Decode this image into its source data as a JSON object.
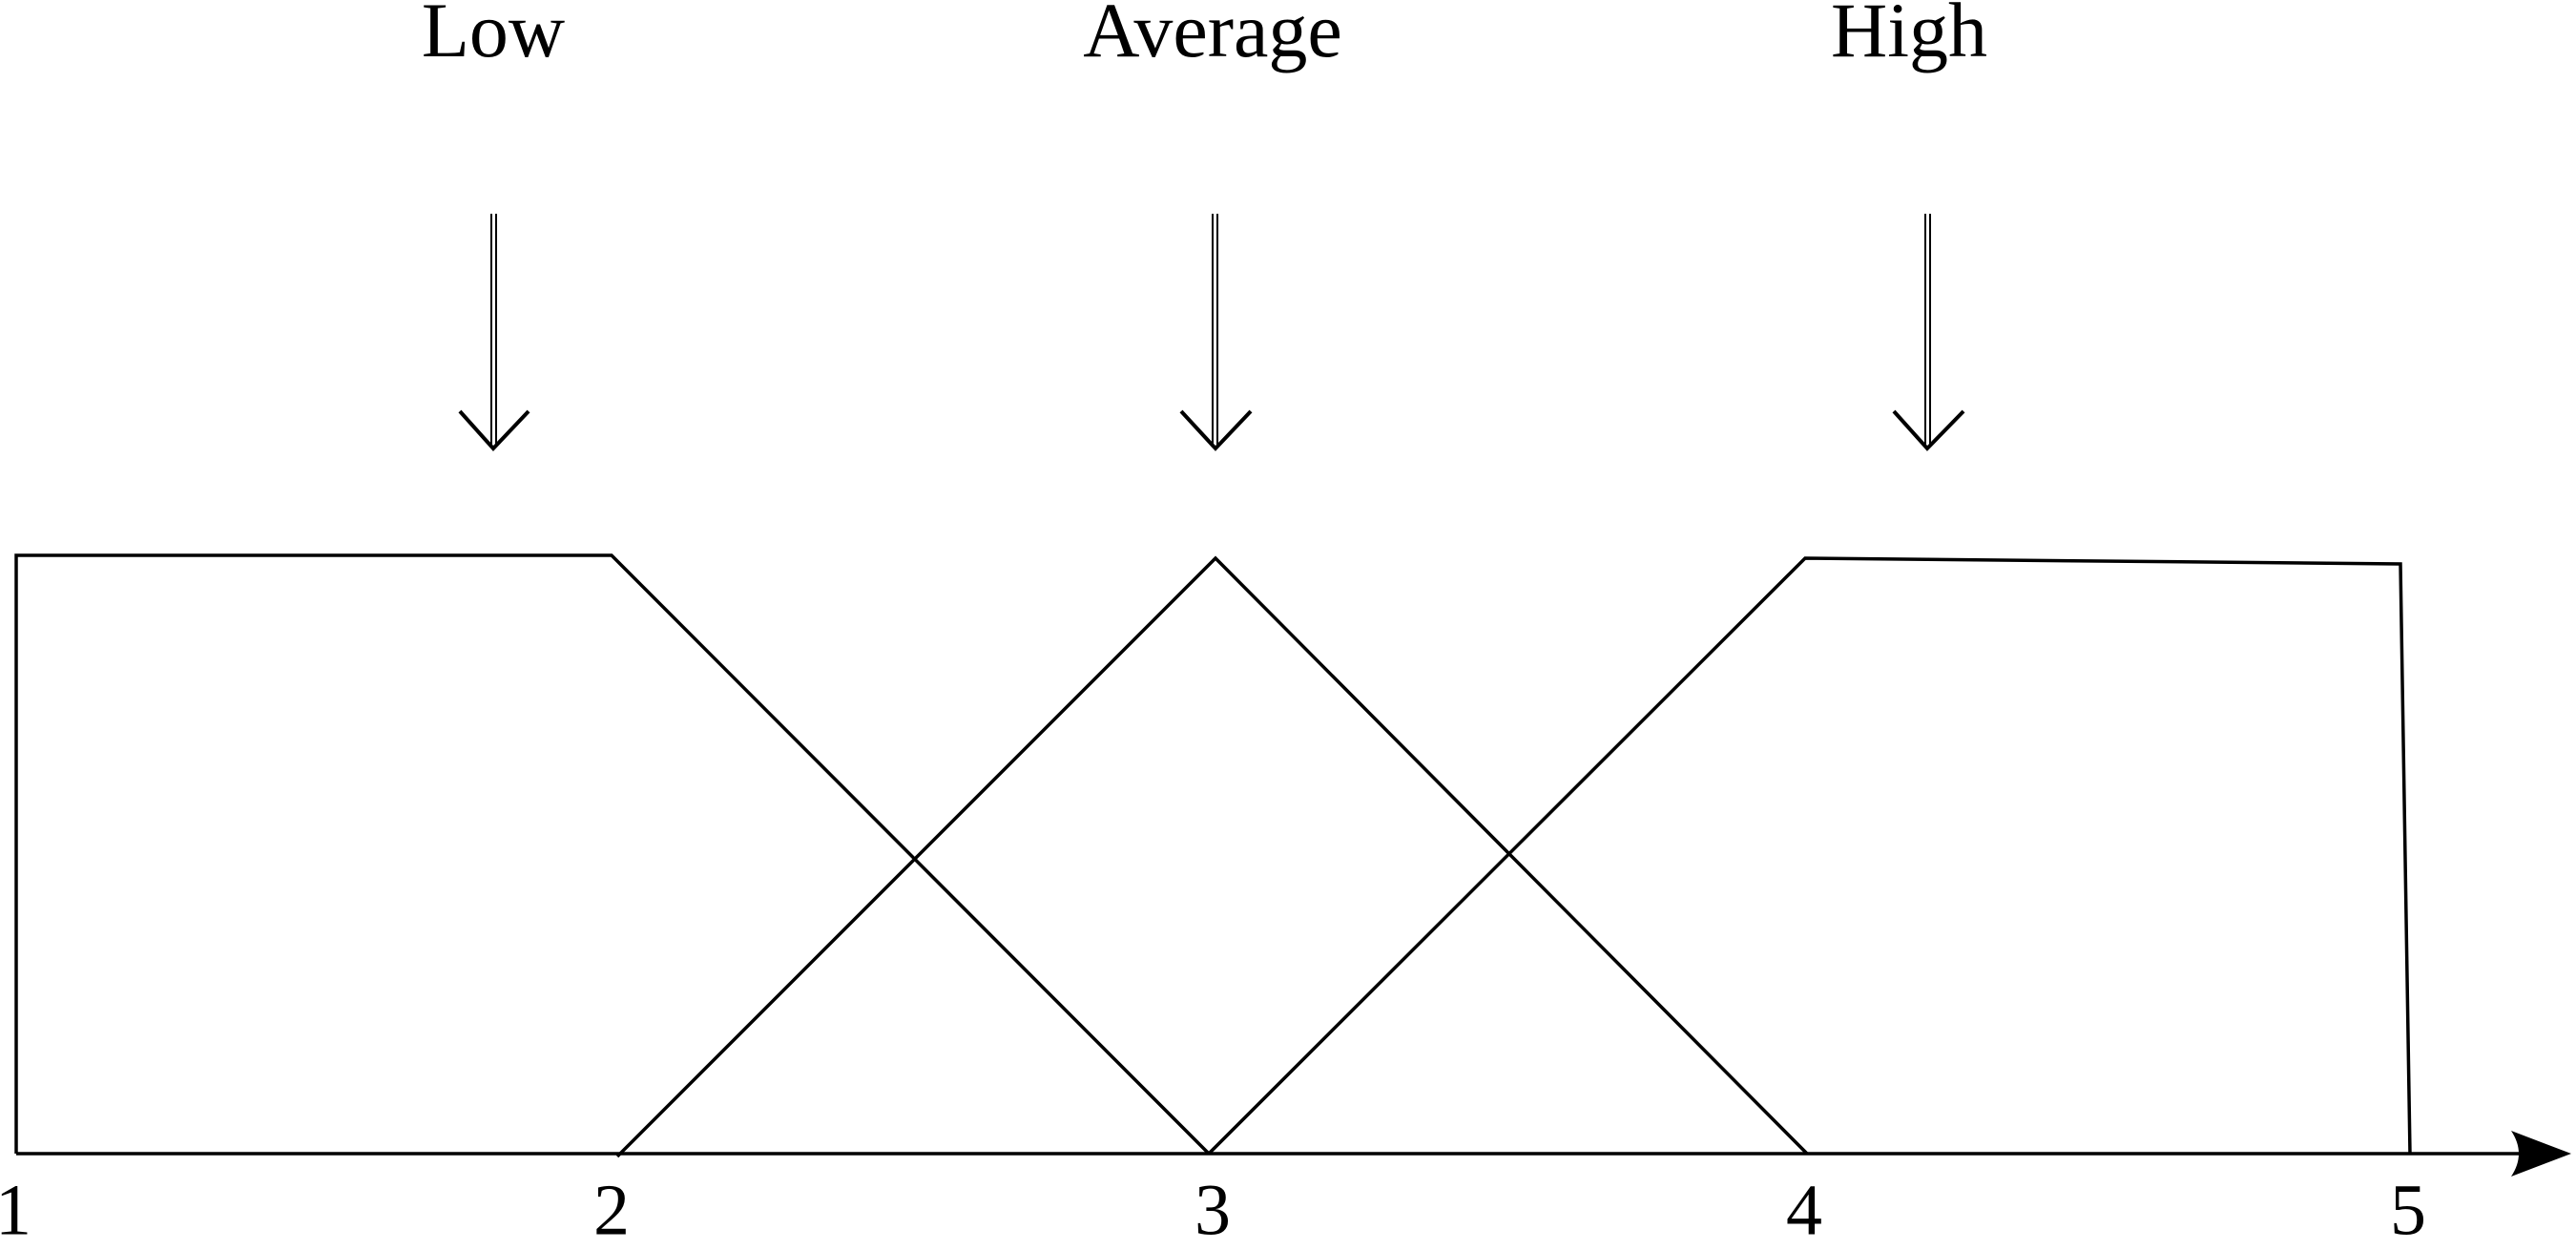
{
  "labels": [
    "Low",
    "Average",
    "High"
  ],
  "axis": {
    "ticks": [
      1,
      2,
      3,
      4,
      5
    ]
  }
}
